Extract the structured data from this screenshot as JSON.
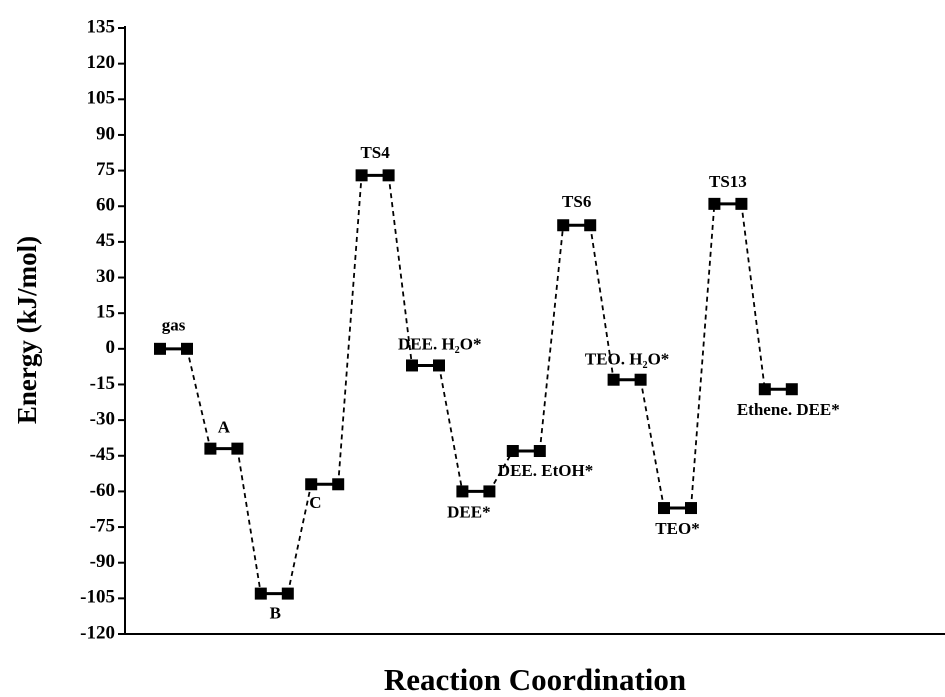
{
  "chart_data": {
    "type": "energy-profile",
    "x_label": "Reaction Coordination",
    "y_label": "Energy (kJ/mol)",
    "categories": [
      "gas",
      "A",
      "B",
      "C",
      "TS4",
      "DEE. H₂O*",
      "DEE*",
      "DEE. EtOH*",
      "TS6",
      "TEO. H₂O*",
      "TEO*",
      "TS13",
      "Ethene. DEE*"
    ],
    "values": [
      0,
      -42,
      -103,
      -57,
      73,
      -7,
      -60,
      -43,
      52,
      -13,
      -67,
      61,
      -17
    ],
    "color": "#000000",
    "ylim": [
      -120,
      135
    ],
    "yticks": [
      -120,
      -105,
      -90,
      -75,
      -60,
      -45,
      -30,
      -15,
      0,
      15,
      30,
      45,
      60,
      75,
      90,
      105,
      120,
      135
    ]
  }
}
